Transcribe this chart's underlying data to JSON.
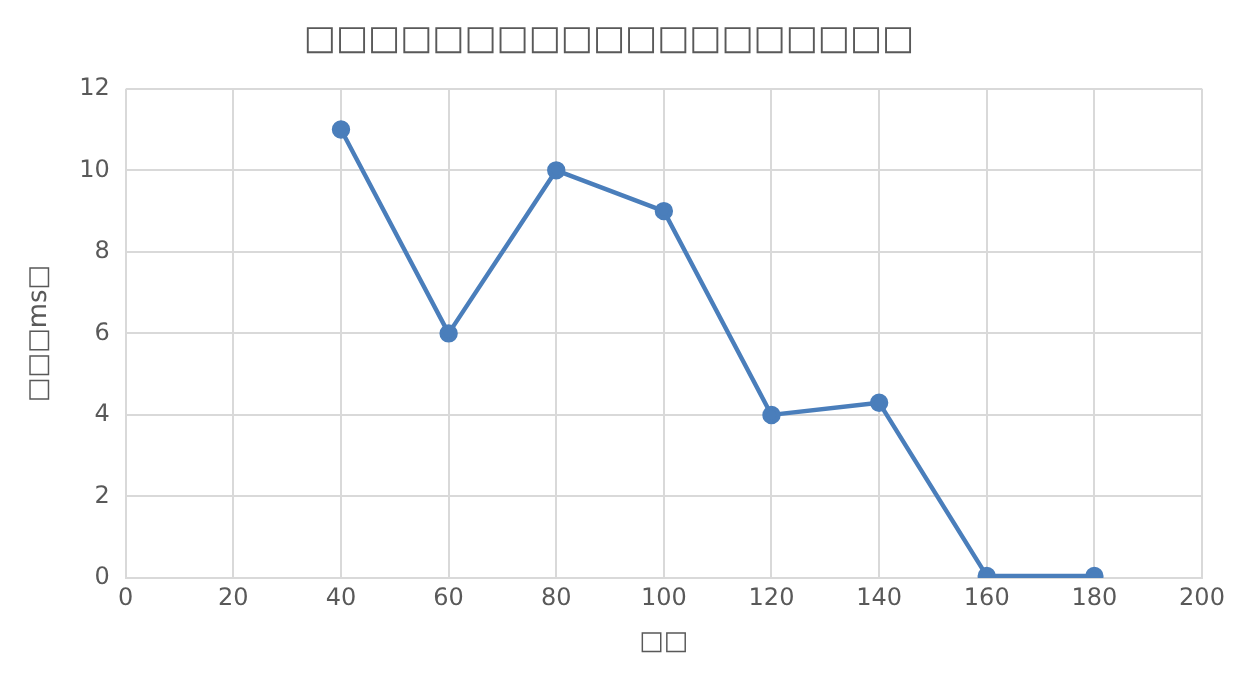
{
  "chart_data": {
    "type": "line",
    "title": "□□□□□□□□□□□□□□□□□□□",
    "xlabel": "□□",
    "ylabel": "□□□ms□",
    "x": [
      40,
      60,
      80,
      100,
      120,
      140,
      160,
      180
    ],
    "series": [
      {
        "color": "#4a7ebb",
        "values": [
          11,
          6,
          10,
          9,
          4,
          4.3,
          0.05,
          0.05
        ]
      }
    ],
    "xlim": [
      0,
      200
    ],
    "xticks": [
      0,
      20,
      40,
      60,
      80,
      100,
      120,
      140,
      160,
      180,
      200
    ],
    "ylim": [
      0,
      12
    ],
    "yticks": [
      0,
      2,
      4,
      6,
      8,
      10,
      12
    ],
    "grid": true,
    "marker": "circle",
    "line_style": "solid"
  }
}
